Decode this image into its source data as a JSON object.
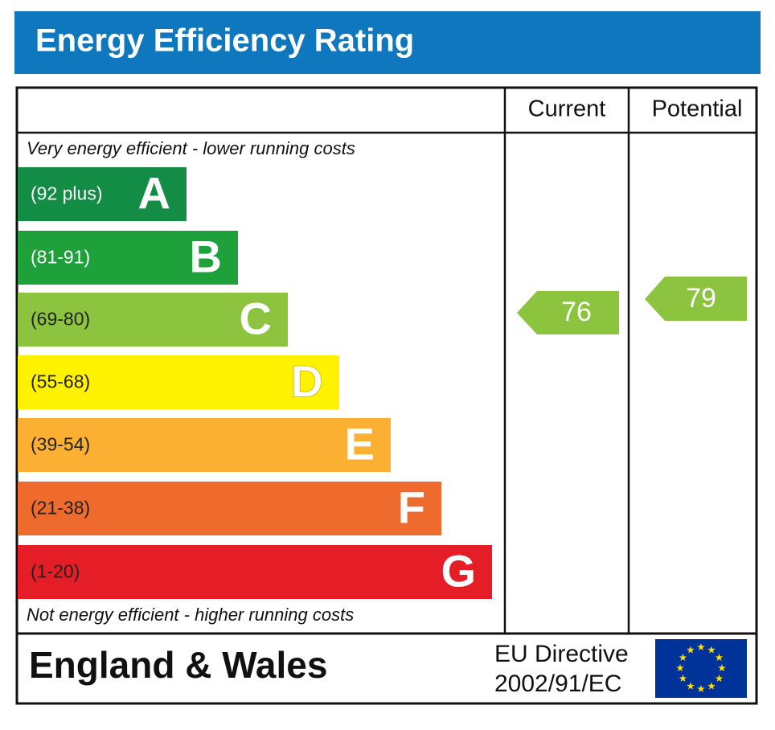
{
  "header": {
    "title": "Energy Efficiency Rating"
  },
  "columns": {
    "current": "Current",
    "potential": "Potential"
  },
  "top_note": "Very energy efficient - lower running costs",
  "bottom_note": "Not energy efficient - higher running costs",
  "bands": [
    {
      "range": "(92 plus)",
      "letter": "A"
    },
    {
      "range": "(81-91)",
      "letter": "B"
    },
    {
      "range": "(69-80)",
      "letter": "C"
    },
    {
      "range": "(55-68)",
      "letter": "D"
    },
    {
      "range": "(39-54)",
      "letter": "E"
    },
    {
      "range": "(21-38)",
      "letter": "F"
    },
    {
      "range": "(1-20)",
      "letter": "G"
    }
  ],
  "ratings": {
    "current": "76",
    "potential": "79"
  },
  "footer": {
    "region": "England & Wales",
    "directive_line1": "EU Directive",
    "directive_line2": "2002/91/EC"
  }
}
